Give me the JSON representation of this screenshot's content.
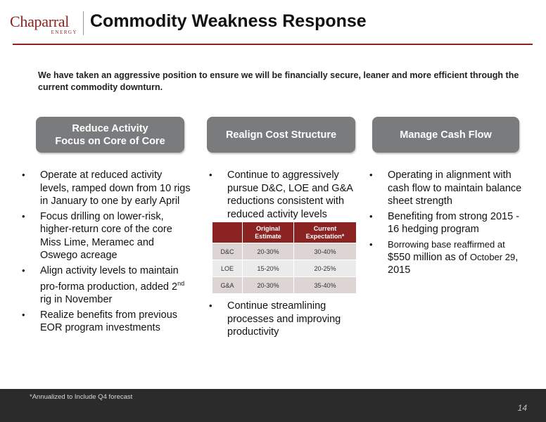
{
  "logo": {
    "main": "Chaparral",
    "sub": "ENERGY"
  },
  "title": "Commodity Weakness Response",
  "intro": "We have taken an aggressive position to ensure we will be financially secure, leaner and more efficient through the current commodity downturn.",
  "pillars": [
    {
      "line1": "Reduce Activity",
      "line2": "Focus on Core of Core"
    },
    {
      "line1": "Realign Cost Structure"
    },
    {
      "line1": "Manage Cash Flow"
    }
  ],
  "col1": [
    "Operate at reduced activity levels, ramped down from 10 rigs in January to one by early April",
    "Focus drilling on lower-risk, higher-return core of the core Miss Lime, Meramec and Oswego acreage",
    {
      "pre": "Align activity levels to maintain pro-forma production, added 2",
      "sup": "nd",
      "post": " rig in November"
    },
    "Realize benefits from previous EOR program investments"
  ],
  "col2": {
    "bullet1": "Continue to aggressively pursue D&C, LOE and G&A reductions consistent with reduced activity levels",
    "table": {
      "headers": [
        "",
        "Original Estimate",
        "Current Expectation*"
      ],
      "rows": [
        [
          "D&C",
          "20-30%",
          "30-40%"
        ],
        [
          "LOE",
          "15-20%",
          "20-25%"
        ],
        [
          "G&A",
          "20-30%",
          "35-40%"
        ]
      ]
    },
    "bullet2": "Continue streamlining processes and improving productivity"
  },
  "col3": {
    "bullet1": "Operating in alignment with cash flow to maintain balance sheet strength",
    "bullet2": "Benefiting from strong 2015 - 16 hedging program",
    "bullet3": {
      "a": "Borrowing base reaffirmed at ",
      "b": "$550 million as of ",
      "c": "October ",
      "d": "29",
      "e": ", 2015"
    }
  },
  "bullet_glyph": "•",
  "footnote": "*Annualized to Include Q4 forecast",
  "page_number": "14",
  "colors": {
    "brand": "#8b2323",
    "pill": "#7a7b7d",
    "footer": "#2b2b2b"
  }
}
